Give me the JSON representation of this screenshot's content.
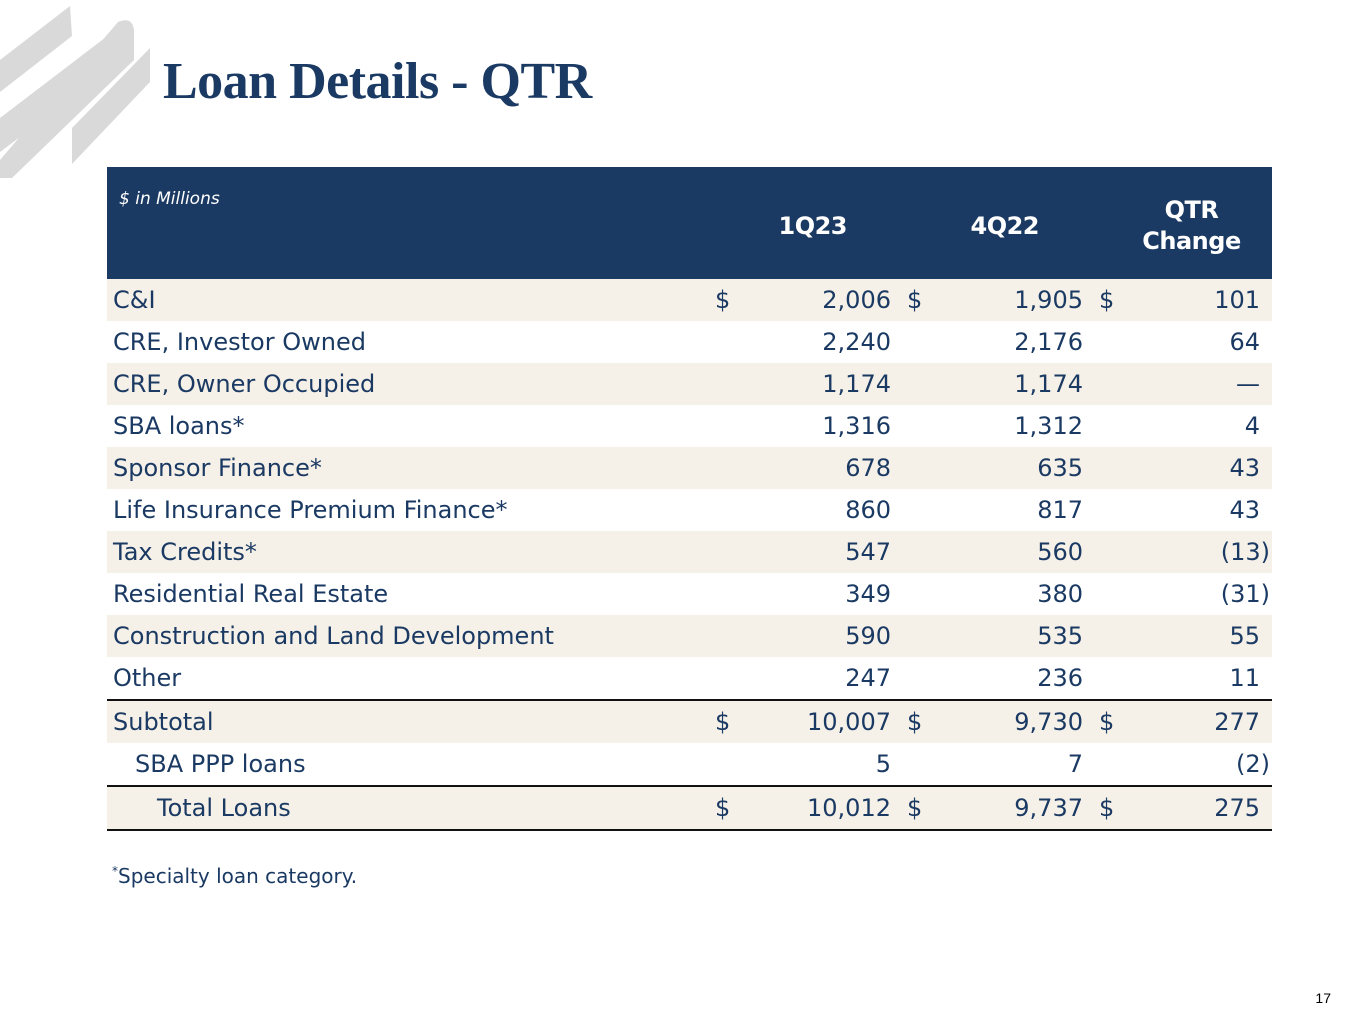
{
  "title": "Loan Details - QTR",
  "colors": {
    "header_bg": "#1b3a63",
    "stripe": "#f5f0e8",
    "text": "#1b3a63",
    "logo": "#d9d9d9"
  },
  "table": {
    "units_label": "$ in Millions",
    "columns": {
      "c1": "1Q23",
      "c2": "4Q22",
      "c3_line1": "QTR",
      "c3_line2": "Change"
    },
    "rows": [
      {
        "label": "C&I",
        "d1": "$",
        "v1": "2,006",
        "d2": "$",
        "v2": "1,905",
        "d3": "$",
        "v3": "101"
      },
      {
        "label": "CRE, Investor Owned",
        "d1": "",
        "v1": "2,240",
        "d2": "",
        "v2": "2,176",
        "d3": "",
        "v3": "64"
      },
      {
        "label": "CRE, Owner Occupied",
        "d1": "",
        "v1": "1,174",
        "d2": "",
        "v2": "1,174",
        "d3": "",
        "v3": "—"
      },
      {
        "label": "SBA loans*",
        "d1": "",
        "v1": "1,316",
        "d2": "",
        "v2": "1,312",
        "d3": "",
        "v3": "4"
      },
      {
        "label": "Sponsor Finance*",
        "d1": "",
        "v1": "678",
        "d2": "",
        "v2": "635",
        "d3": "",
        "v3": "43"
      },
      {
        "label": "Life Insurance Premium Finance*",
        "d1": "",
        "v1": "860",
        "d2": "",
        "v2": "817",
        "d3": "",
        "v3": "43"
      },
      {
        "label": "Tax Credits*",
        "d1": "",
        "v1": "547",
        "d2": "",
        "v2": "560",
        "d3": "",
        "v3": "(13)"
      },
      {
        "label": "Residential Real Estate",
        "d1": "",
        "v1": "349",
        "d2": "",
        "v2": "380",
        "d3": "",
        "v3": "(31)"
      },
      {
        "label": "Construction and Land Development",
        "d1": "",
        "v1": "590",
        "d2": "",
        "v2": "535",
        "d3": "",
        "v3": "55"
      },
      {
        "label": "Other",
        "d1": "",
        "v1": "247",
        "d2": "",
        "v2": "236",
        "d3": "",
        "v3": "11"
      },
      {
        "label": "Subtotal",
        "d1": "$",
        "v1": "10,007",
        "d2": "$",
        "v2": "9,730",
        "d3": "$",
        "v3": "277"
      },
      {
        "label": "SBA PPP loans",
        "d1": "",
        "v1": "5",
        "d2": "",
        "v2": "7",
        "d3": "",
        "v3": "(2)"
      },
      {
        "label": "Total Loans",
        "d1": "$",
        "v1": "10,012",
        "d2": "$",
        "v2": "9,737",
        "d3": "$",
        "v3": "275"
      }
    ]
  },
  "footnote": {
    "mark": "*",
    "text": "Specialty loan category."
  },
  "page_number": "17"
}
